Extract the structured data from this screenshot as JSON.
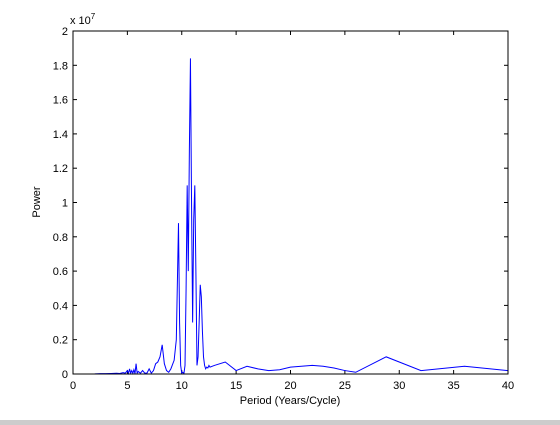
{
  "chart_data": {
    "type": "line",
    "title": "",
    "xlabel": "Period (Years/Cycle)",
    "ylabel": "Power",
    "xlim": [
      0,
      40
    ],
    "ylim": [
      0,
      2
    ],
    "x_ticks": [
      0,
      5,
      10,
      15,
      20,
      25,
      30,
      35,
      40
    ],
    "x_tick_labels": [
      "0",
      "5",
      "10",
      "15",
      "20",
      "25",
      "30",
      "35",
      "40"
    ],
    "y_ticks": [
      0,
      0.2,
      0.4,
      0.6,
      0.8,
      1,
      1.2,
      1.4,
      1.6,
      1.8,
      2
    ],
    "y_tick_labels": [
      "0",
      "0.2",
      "0.4",
      "0.6",
      "0.8",
      "1",
      "1.2",
      "1.4",
      "1.6",
      "1.8",
      "2"
    ],
    "y_exponent_base": "x 10",
    "y_exponent_power": "7",
    "grid": false,
    "legend": false,
    "line_color": "#0000ff",
    "series": [
      {
        "x": [
          2.0,
          2.5,
          3.0,
          3.5,
          4.0,
          4.3,
          4.6,
          4.8,
          5.0,
          5.1,
          5.2,
          5.3,
          5.4,
          5.5,
          5.6,
          5.7,
          5.8,
          5.9,
          6.0,
          6.2,
          6.4,
          6.6,
          6.8,
          7.0,
          7.2,
          7.4,
          7.6,
          7.8,
          8.0,
          8.2,
          8.4,
          8.6,
          8.8,
          9.0,
          9.3,
          9.5,
          9.7,
          9.8,
          9.9,
          10.0,
          10.1,
          10.2,
          10.3,
          10.4,
          10.5,
          10.6,
          10.7,
          10.8,
          10.9,
          11.0,
          11.1,
          11.2,
          11.3,
          11.4,
          11.5,
          11.6,
          11.7,
          11.8,
          11.9,
          12.0,
          12.1,
          12.2,
          12.3,
          12.4,
          12.5,
          12.6,
          13.0,
          14.0,
          15.0,
          16.0,
          17.0,
          18.0,
          19.0,
          20.0,
          21.0,
          22.0,
          23.0,
          24.0,
          25.0,
          26.0,
          28.8,
          32.0,
          36.0,
          40.0
        ],
        "y": [
          0.001,
          0.002,
          0.002,
          0.003,
          0.004,
          0.003,
          0.008,
          0.005,
          0.02,
          0.004,
          0.03,
          0.005,
          0.02,
          0.004,
          0.025,
          0.002,
          0.06,
          0.005,
          0.015,
          0.005,
          0.02,
          0.005,
          0.005,
          0.03,
          0.005,
          0.02,
          0.06,
          0.07,
          0.1,
          0.17,
          0.06,
          0.02,
          0.01,
          0.03,
          0.08,
          0.2,
          0.88,
          0.3,
          0.05,
          0.005,
          0.01,
          0.003,
          0.05,
          0.5,
          1.1,
          0.6,
          1.3,
          1.84,
          1.0,
          0.3,
          0.9,
          1.1,
          0.6,
          0.05,
          0.1,
          0.3,
          0.52,
          0.45,
          0.25,
          0.1,
          0.05,
          0.03,
          0.04,
          0.035,
          0.05,
          0.04,
          0.05,
          0.07,
          0.02,
          0.045,
          0.03,
          0.02,
          0.025,
          0.04,
          0.045,
          0.05,
          0.045,
          0.035,
          0.02,
          0.01,
          0.1,
          0.02,
          0.045,
          0.02
        ]
      }
    ]
  }
}
